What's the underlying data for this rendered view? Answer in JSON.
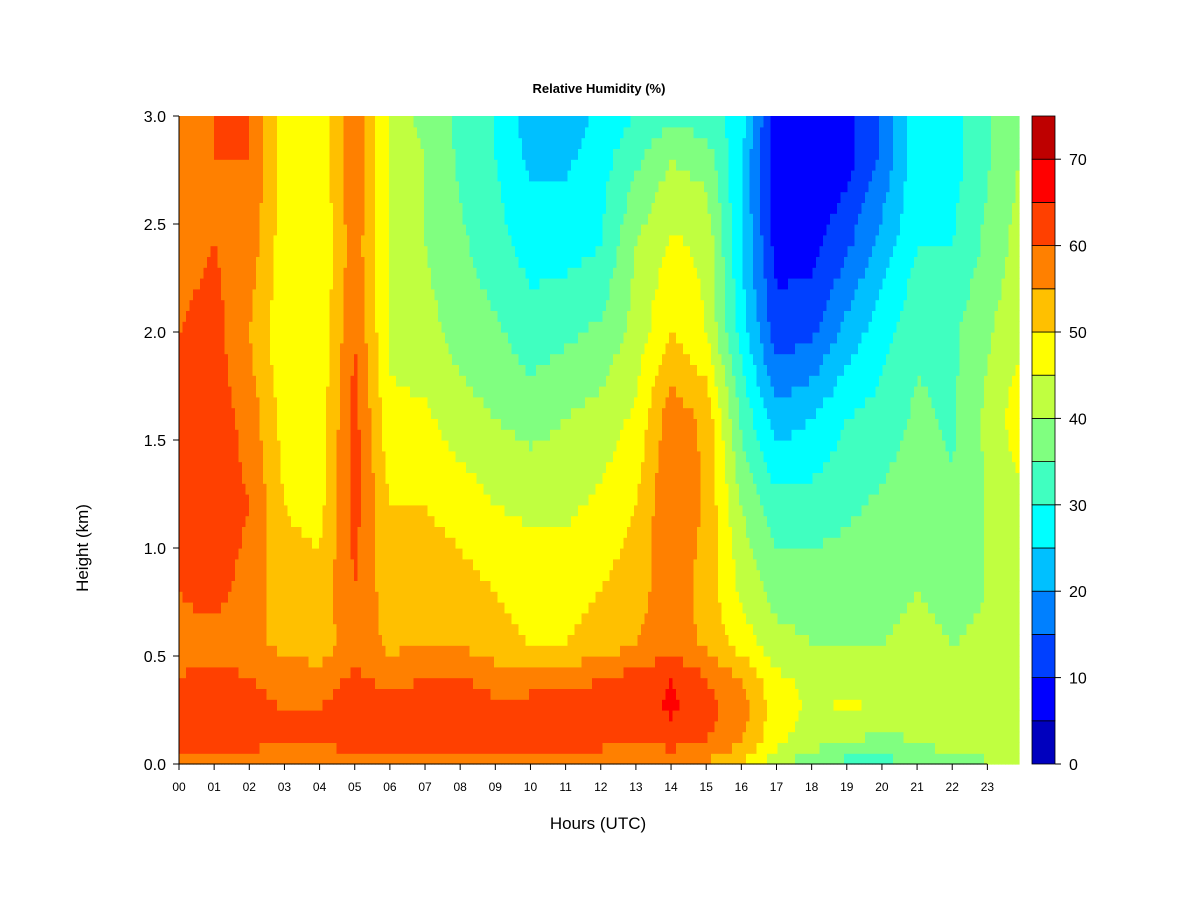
{
  "chart_data": {
    "type": "heatmap",
    "title": "Relative Humidity (%)",
    "xlabel": "Hours (UTC)",
    "ylabel": "Height (km)",
    "xlim": [
      0,
      23.9
    ],
    "ylim": [
      0.0,
      3.0
    ],
    "x_ticks": [
      "00",
      "01",
      "02",
      "03",
      "04",
      "05",
      "06",
      "07",
      "08",
      "09",
      "10",
      "11",
      "12",
      "13",
      "14",
      "15",
      "16",
      "17",
      "18",
      "19",
      "20",
      "21",
      "22",
      "23"
    ],
    "y_ticks": [
      "0.0",
      "0.5",
      "1.0",
      "1.5",
      "2.0",
      "2.5",
      "3.0"
    ],
    "colorbar": {
      "levels": [
        0,
        5,
        10,
        15,
        20,
        25,
        30,
        35,
        40,
        45,
        50,
        55,
        60,
        65,
        70,
        75
      ],
      "colors": [
        "#00007f",
        "#0000be",
        "#0000ff",
        "#0040ff",
        "#0080ff",
        "#00c0ff",
        "#00ffff",
        "#40ffc0",
        "#80ff80",
        "#c0ff40",
        "#ffff00",
        "#ffc000",
        "#ff8000",
        "#ff4000",
        "#ff0000",
        "#be0000",
        "#7f0000"
      ],
      "tick_labels": [
        "0",
        "10",
        "20",
        "30",
        "40",
        "50",
        "60",
        "70"
      ]
    },
    "height_grid_km": [
      0.0,
      0.1,
      0.25,
      0.4,
      0.55,
      0.8,
      1.2,
      1.6,
      2.0,
      2.4,
      2.8,
      3.0
    ],
    "hour_grid_utc": [
      0,
      1,
      2,
      3,
      4,
      5,
      6,
      7,
      8,
      9,
      10,
      11,
      12,
      13,
      14,
      15,
      16,
      17,
      18,
      19,
      20,
      21,
      22,
      23.9
    ],
    "profiles_rh_percent": [
      [
        54,
        62,
        62,
        60,
        58,
        60,
        62,
        62,
        60,
        58,
        56,
        55
      ],
      [
        54,
        63,
        64,
        62,
        58,
        62,
        63,
        63,
        62,
        60,
        60,
        60
      ],
      [
        56,
        62,
        62,
        60,
        56,
        58,
        60,
        58,
        55,
        58,
        60,
        60
      ],
      [
        55,
        60,
        60,
        58,
        54,
        52,
        50,
        48,
        46,
        47,
        48,
        48
      ],
      [
        55,
        60,
        60,
        57,
        52,
        52,
        48,
        47,
        46,
        45,
        46,
        46
      ],
      [
        56,
        63,
        64,
        61,
        58,
        60,
        62,
        62,
        60,
        58,
        60,
        60
      ],
      [
        55,
        62,
        62,
        58,
        54,
        52,
        50,
        46,
        44,
        44,
        44,
        44
      ],
      [
        56,
        64,
        64,
        60,
        55,
        53,
        50,
        46,
        42,
        40,
        40,
        38
      ],
      [
        56,
        65,
        65,
        60,
        55,
        52,
        48,
        42,
        38,
        36,
        34,
        34
      ],
      [
        55,
        62,
        61,
        58,
        52,
        50,
        45,
        40,
        36,
        32,
        30,
        30
      ],
      [
        55,
        62,
        62,
        58,
        50,
        48,
        44,
        38,
        32,
        28,
        24,
        22
      ],
      [
        55,
        62,
        62,
        58,
        50,
        48,
        44,
        40,
        34,
        28,
        24,
        22
      ],
      [
        54,
        62,
        62,
        60,
        52,
        50,
        46,
        42,
        36,
        30,
        28,
        26
      ],
      [
        55,
        60,
        62,
        62,
        55,
        53,
        50,
        46,
        42,
        40,
        34,
        30
      ],
      [
        55,
        62,
        66,
        65,
        58,
        58,
        60,
        58,
        50,
        46,
        40,
        34
      ],
      [
        54,
        60,
        62,
        60,
        54,
        53,
        54,
        54,
        45,
        44,
        38,
        32
      ],
      [
        50,
        55,
        57,
        55,
        48,
        44,
        40,
        34,
        28,
        25,
        25,
        28
      ],
      [
        42,
        46,
        48,
        46,
        42,
        38,
        32,
        22,
        12,
        8,
        6,
        6
      ],
      [
        36,
        42,
        44,
        44,
        40,
        38,
        32,
        25,
        14,
        8,
        6,
        6
      ],
      [
        33,
        40,
        46,
        44,
        40,
        38,
        34,
        30,
        22,
        14,
        8,
        8
      ],
      [
        33,
        38,
        44,
        44,
        40,
        38,
        36,
        32,
        28,
        22,
        16,
        16
      ],
      [
        36,
        40,
        44,
        44,
        42,
        40,
        38,
        36,
        34,
        30,
        28,
        28
      ],
      [
        38,
        42,
        44,
        42,
        40,
        38,
        36,
        34,
        34,
        30,
        28,
        28
      ],
      [
        40,
        44,
        45,
        44,
        42,
        42,
        44,
        48,
        44,
        42,
        40,
        40
      ]
    ]
  }
}
